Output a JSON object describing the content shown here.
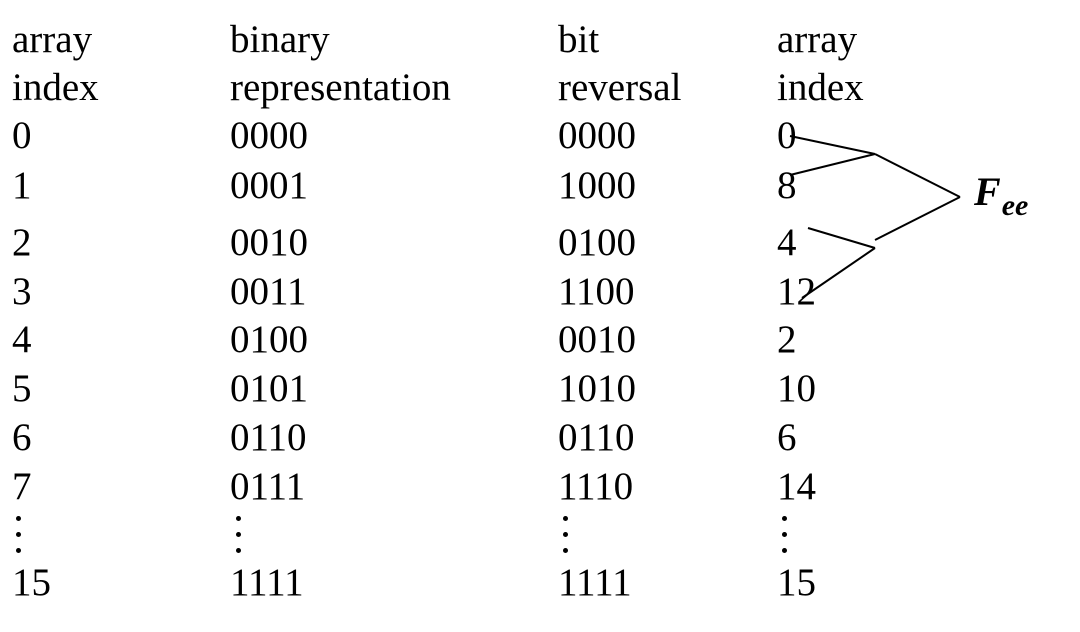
{
  "headers": [
    {
      "line1": "array",
      "line2": "index"
    },
    {
      "line1": "binary",
      "line2": "representation"
    },
    {
      "line1": "bit",
      "line2": "reversal"
    },
    {
      "line1": "array",
      "line2": "index"
    }
  ],
  "rows": [
    [
      "0",
      "0000",
      "0000",
      "0"
    ],
    [
      "1",
      "0001",
      "1000",
      "8"
    ],
    [
      "2",
      "0010",
      "0100",
      "4"
    ],
    [
      "3",
      "0011",
      "1100",
      "12"
    ],
    [
      "4",
      "0100",
      "0010",
      "2"
    ],
    [
      "5",
      "0101",
      "1010",
      "10"
    ],
    [
      "6",
      "0110",
      "0110",
      "6"
    ],
    [
      "7",
      "0111",
      "1110",
      "14"
    ]
  ],
  "last_row": [
    "15",
    "1111",
    "1111",
    "15"
  ],
  "label": {
    "main": "F",
    "sub": "ee"
  }
}
